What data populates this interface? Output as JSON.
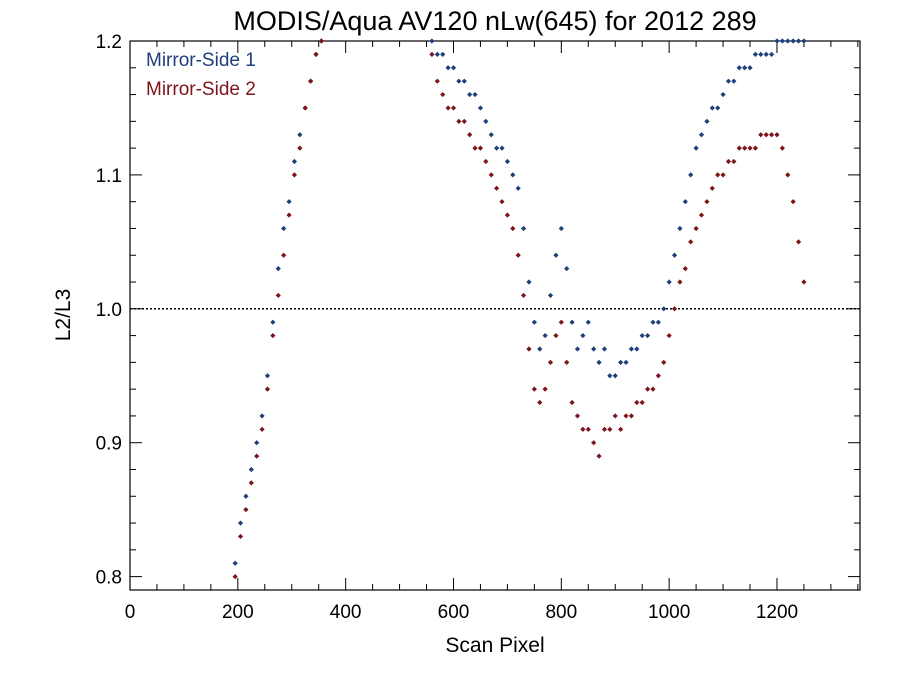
{
  "chart_data": {
    "type": "scatter",
    "title": "MODIS/Aqua AV120 nLw(645) for 2012 289",
    "xlabel": "Scan Pixel",
    "ylabel": "L2/L3",
    "xlim": [
      0,
      1354
    ],
    "ylim": [
      0.79,
      1.2
    ],
    "x_ticks": [
      0,
      200,
      400,
      600,
      800,
      1000,
      1200
    ],
    "x_tick_labels": [
      "0",
      "200",
      "400",
      "600",
      "800",
      "1000",
      "1200"
    ],
    "y_ticks": [
      0.8,
      0.9,
      1.0,
      1.1,
      1.2
    ],
    "y_tick_labels": [
      "0.8",
      "0.9",
      "1.0",
      "1.1",
      "1.2"
    ],
    "reference_line": {
      "y": 1.0,
      "style": "dotted"
    },
    "legend_position": "top-left",
    "grid": false,
    "series": [
      {
        "name": "Mirror-Side 1",
        "color": "#1e3f7a",
        "x": [
          195,
          205,
          215,
          225,
          235,
          245,
          255,
          265,
          275,
          285,
          295,
          305,
          315,
          325,
          335,
          345,
          355,
          560,
          570,
          580,
          590,
          600,
          610,
          620,
          630,
          640,
          650,
          660,
          670,
          680,
          690,
          700,
          710,
          720,
          730,
          740,
          750,
          760,
          770,
          780,
          790,
          800,
          810,
          820,
          830,
          840,
          850,
          860,
          870,
          880,
          890,
          900,
          910,
          920,
          930,
          940,
          950,
          960,
          970,
          980,
          990,
          1000,
          1010,
          1020,
          1030,
          1040,
          1050,
          1060,
          1070,
          1080,
          1090,
          1100,
          1110,
          1120,
          1130,
          1140,
          1150,
          1160,
          1170,
          1180,
          1190,
          1200,
          1210,
          1220,
          1230,
          1240,
          1250
        ],
        "y": [
          0.81,
          0.84,
          0.86,
          0.88,
          0.9,
          0.92,
          0.95,
          0.99,
          1.03,
          1.06,
          1.08,
          1.11,
          1.13,
          1.15,
          1.17,
          1.19,
          1.2,
          1.2,
          1.19,
          1.19,
          1.18,
          1.18,
          1.17,
          1.17,
          1.16,
          1.16,
          1.15,
          1.14,
          1.13,
          1.12,
          1.12,
          1.11,
          1.1,
          1.09,
          1.06,
          1.02,
          0.99,
          0.97,
          0.98,
          1.01,
          1.04,
          1.06,
          1.03,
          0.99,
          0.97,
          0.98,
          0.99,
          0.97,
          0.96,
          0.97,
          0.95,
          0.95,
          0.96,
          0.96,
          0.97,
          0.97,
          0.98,
          0.98,
          0.99,
          0.99,
          1.0,
          1.02,
          1.04,
          1.06,
          1.08,
          1.1,
          1.12,
          1.13,
          1.14,
          1.15,
          1.15,
          1.16,
          1.17,
          1.17,
          1.18,
          1.18,
          1.18,
          1.19,
          1.19,
          1.19,
          1.19,
          1.2,
          1.2,
          1.2,
          1.2,
          1.2,
          1.2
        ]
      },
      {
        "name": "Mirror-Side 2",
        "color": "#7d1419",
        "x": [
          195,
          205,
          215,
          225,
          235,
          245,
          255,
          265,
          275,
          285,
          295,
          305,
          315,
          325,
          335,
          345,
          355,
          560,
          570,
          580,
          590,
          600,
          610,
          620,
          630,
          640,
          650,
          660,
          670,
          680,
          690,
          700,
          710,
          720,
          730,
          740,
          750,
          760,
          770,
          780,
          790,
          800,
          810,
          820,
          830,
          840,
          850,
          860,
          870,
          880,
          890,
          900,
          910,
          920,
          930,
          940,
          950,
          960,
          970,
          980,
          990,
          1000,
          1010,
          1020,
          1030,
          1040,
          1050,
          1060,
          1070,
          1080,
          1090,
          1100,
          1110,
          1120,
          1130,
          1140,
          1150,
          1160,
          1170,
          1180,
          1190,
          1200,
          1210,
          1220,
          1230,
          1240,
          1250
        ],
        "y": [
          0.8,
          0.83,
          0.85,
          0.87,
          0.89,
          0.91,
          0.94,
          0.98,
          1.01,
          1.04,
          1.07,
          1.1,
          1.12,
          1.15,
          1.17,
          1.19,
          1.2,
          1.19,
          1.17,
          1.16,
          1.15,
          1.15,
          1.14,
          1.14,
          1.13,
          1.12,
          1.12,
          1.11,
          1.1,
          1.09,
          1.08,
          1.07,
          1.06,
          1.04,
          1.01,
          0.97,
          0.94,
          0.93,
          0.94,
          0.96,
          0.98,
          0.99,
          0.96,
          0.93,
          0.92,
          0.91,
          0.91,
          0.9,
          0.89,
          0.91,
          0.91,
          0.92,
          0.91,
          0.92,
          0.92,
          0.93,
          0.93,
          0.94,
          0.94,
          0.95,
          0.96,
          0.98,
          1.0,
          1.02,
          1.03,
          1.05,
          1.06,
          1.07,
          1.08,
          1.09,
          1.1,
          1.1,
          1.11,
          1.11,
          1.12,
          1.12,
          1.12,
          1.12,
          1.13,
          1.13,
          1.13,
          1.13,
          1.12,
          1.1,
          1.08,
          1.05,
          1.02
        ]
      }
    ]
  }
}
